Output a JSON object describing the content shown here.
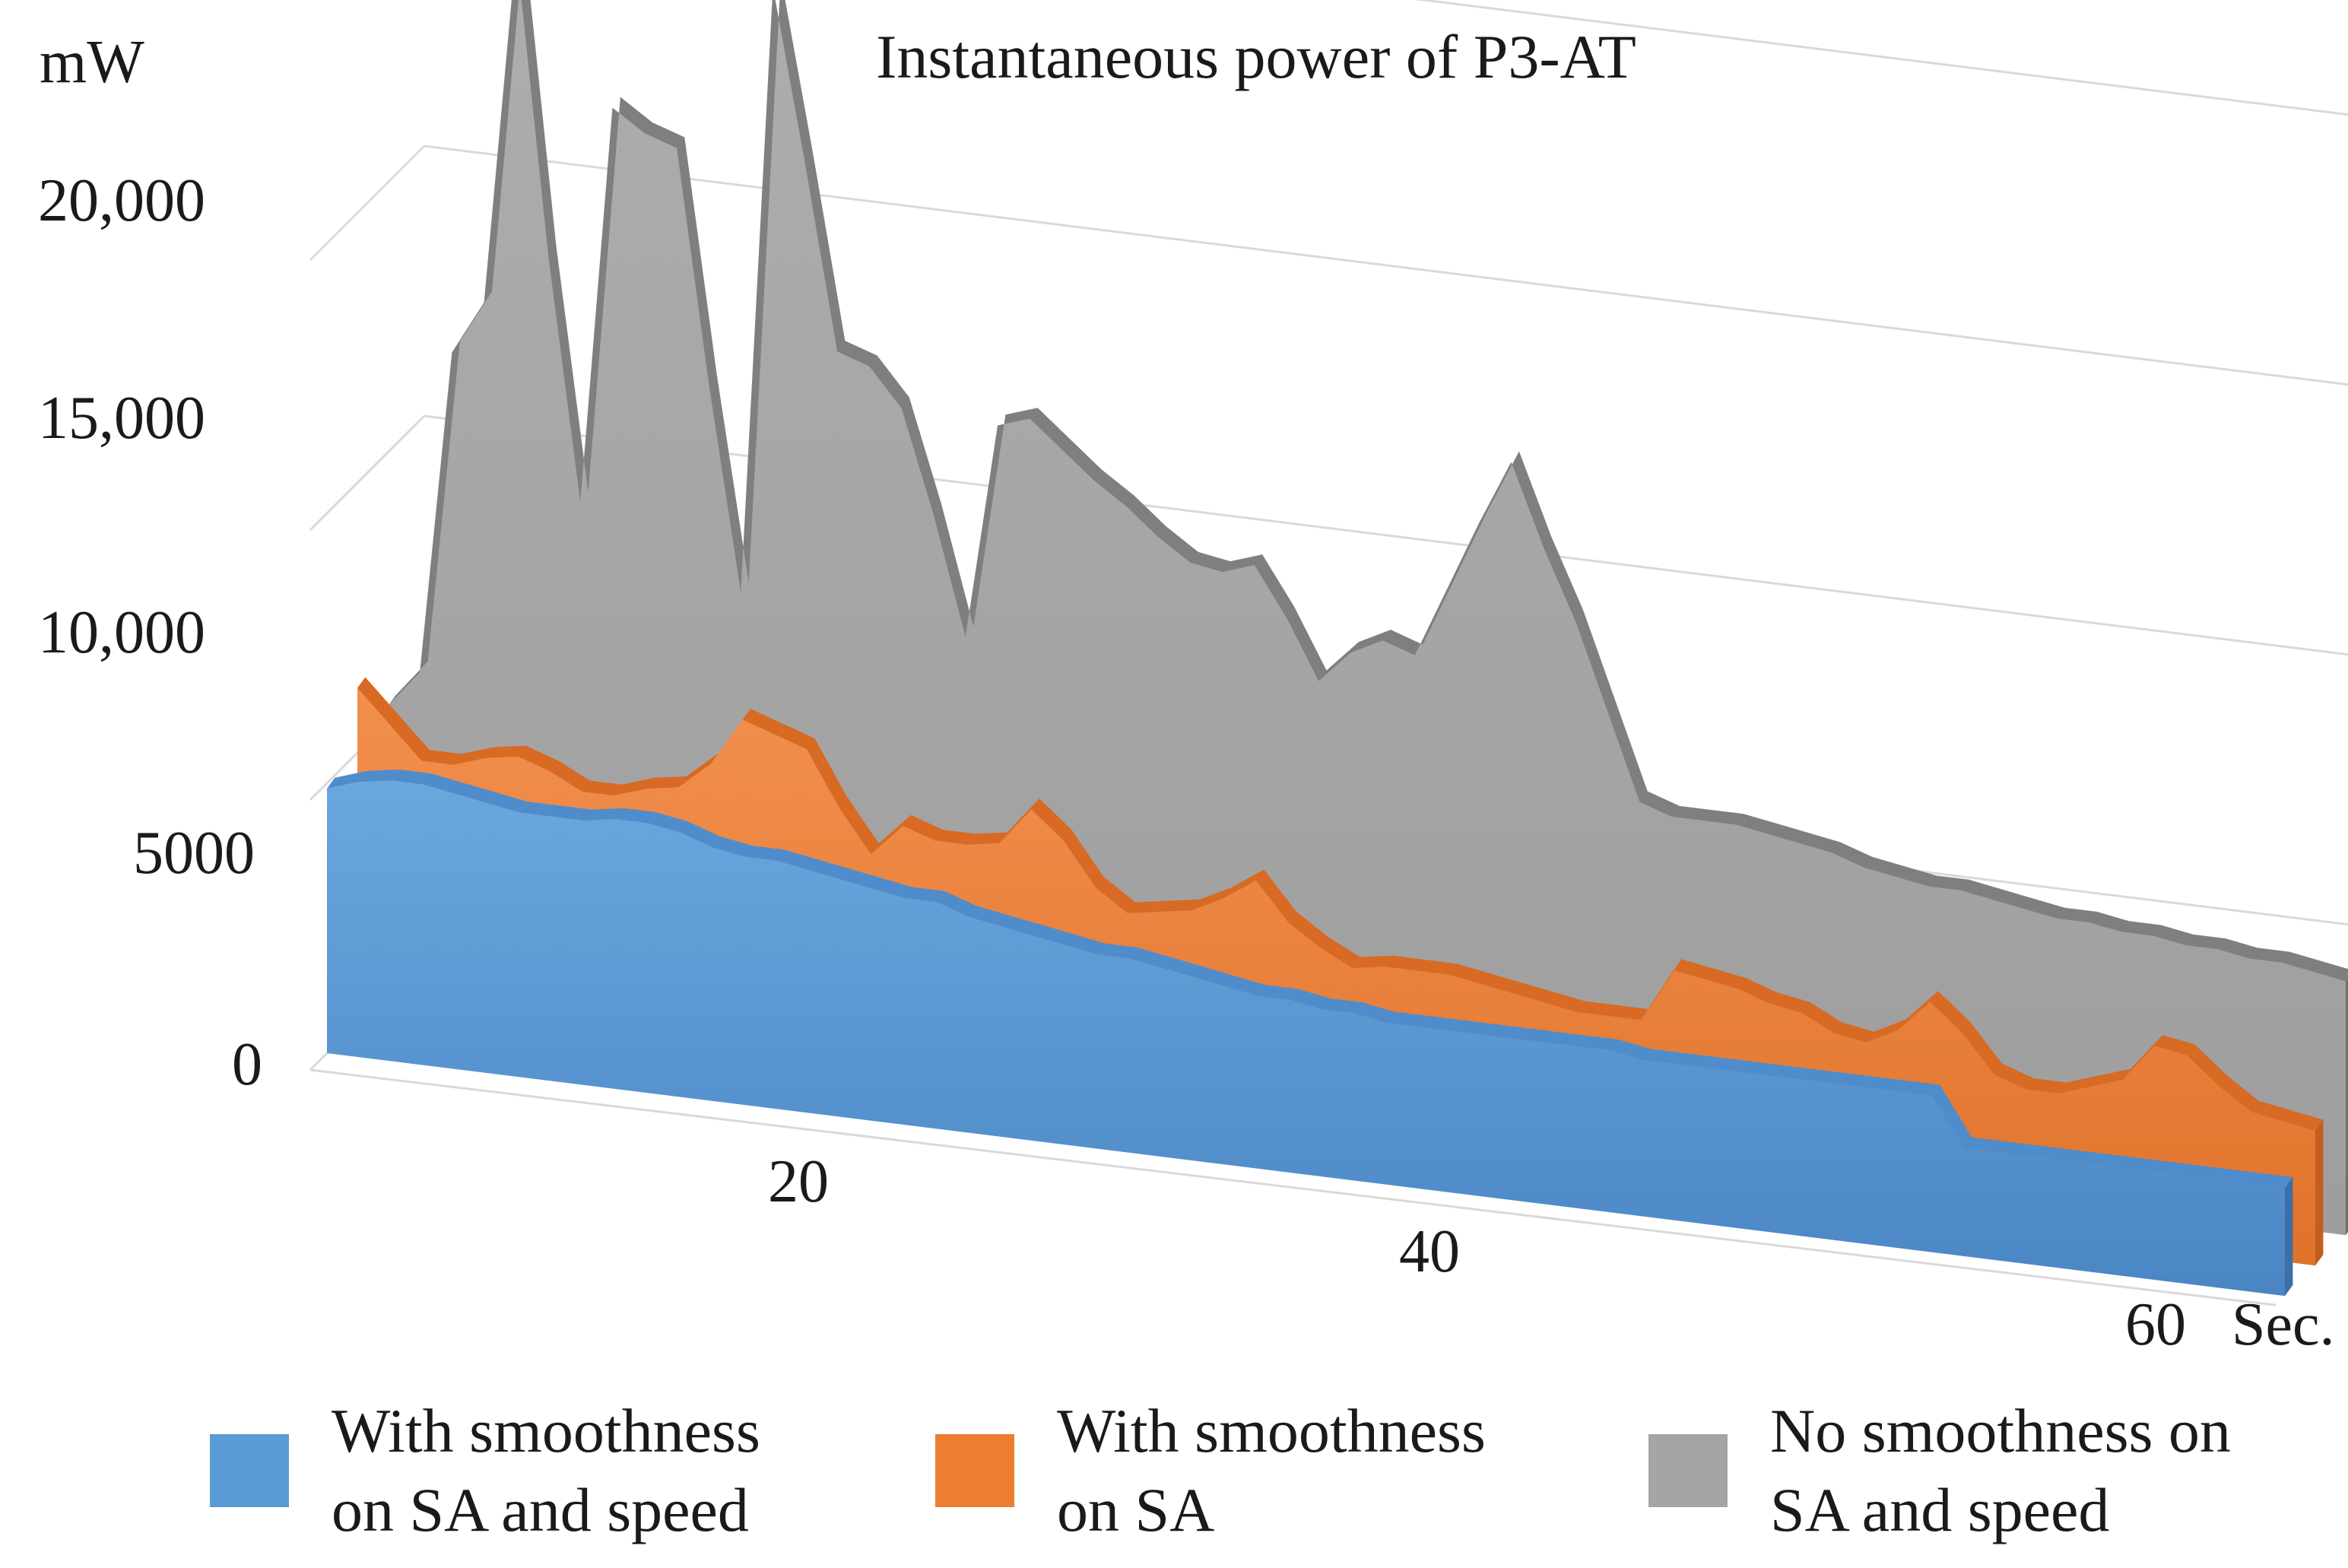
{
  "chart_data": {
    "type": "area",
    "title": "Instantaneous power of P3-AT",
    "ylabel": "mW",
    "xlabel": "Sec.",
    "ylim": [
      0,
      20000
    ],
    "y_ticks": [
      0,
      5000,
      10000,
      15000,
      20000
    ],
    "y_tick_labels": [
      "0",
      "5000",
      "10,000",
      "15,000",
      "20,000"
    ],
    "x_ticks": [
      20,
      40,
      60
    ],
    "x_tick_labels": [
      "20",
      "40",
      "60"
    ],
    "x": [
      1,
      2,
      3,
      4,
      5,
      6,
      7,
      8,
      9,
      10,
      11,
      12,
      13,
      14,
      15,
      16,
      17,
      18,
      19,
      20,
      21,
      22,
      23,
      24,
      25,
      26,
      27,
      28,
      29,
      30,
      31,
      32,
      33,
      34,
      35,
      36,
      37,
      38,
      39,
      40,
      41,
      42,
      43,
      44,
      45,
      46,
      47,
      48,
      49,
      50,
      51,
      52,
      53,
      54,
      55,
      56,
      57,
      58,
      59,
      60,
      61,
      62
    ],
    "grid": true,
    "legend_position": "bottom",
    "series": [
      {
        "name": "With smoothness on SA and speed",
        "color": "#5b9bd5",
        "values": [
          4900,
          5100,
          5200,
          5200,
          5100,
          5000,
          4900,
          4900,
          4900,
          5000,
          5000,
          4900,
          4700,
          4600,
          4600,
          4500,
          4400,
          4300,
          4200,
          4200,
          4000,
          3900,
          3800,
          3700,
          3600,
          3600,
          3500,
          3400,
          3300,
          3200,
          3200,
          3100,
          3100,
          3000,
          3000,
          3000,
          3000,
          3000,
          3000,
          3000,
          3000,
          2900,
          2900,
          2900,
          2900,
          2900,
          2900,
          2900,
          2900,
          2900,
          2900,
          2000,
          2000,
          2000,
          2000,
          2000,
          2000,
          2000,
          2000,
          2000,
          2000,
          2000
        ]
      },
      {
        "name": "With smoothness on SA",
        "color": "#ed7d31",
        "values": [
          6200,
          5600,
          5000,
          5000,
          5200,
          5300,
          5100,
          4800,
          4800,
          5000,
          5100,
          5600,
          6500,
          6300,
          6100,
          5100,
          4300,
          4900,
          4700,
          4700,
          4800,
          5500,
          5000,
          4200,
          3800,
          3900,
          4000,
          4300,
          4700,
          4000,
          3600,
          3300,
          3400,
          3400,
          3400,
          3300,
          3200,
          3100,
          3000,
          3000,
          3000,
          4000,
          3900,
          3800,
          3600,
          3500,
          3200,
          3100,
          3400,
          4000,
          3500,
          2800,
          2600,
          2600,
          2800,
          3000,
          3700,
          3600,
          3100,
          2700,
          2600,
          2500
        ]
      },
      {
        "name": "No smoothness on SA and speed",
        "color": "#a5a5a5",
        "values": [
          5300,
          6000,
          12000,
          13000,
          19600,
          14000,
          9500,
          16900,
          16500,
          16300,
          12000,
          8200,
          19500,
          16300,
          12900,
          12700,
          12000,
          10100,
          7900,
          11900,
          12100,
          11600,
          11100,
          10700,
          10200,
          9800,
          9700,
          9900,
          9000,
          7900,
          8500,
          8800,
          8600,
          9900,
          11200,
          12400,
          10900,
          9600,
          8000,
          6400,
          6200,
          6200,
          6200,
          6100,
          6000,
          5900,
          5700,
          5600,
          5500,
          5500,
          5400,
          5300,
          5200,
          5200,
          5100,
          5100,
          5000,
          5000,
          4900,
          4900,
          4800,
          4700
        ]
      }
    ]
  },
  "legend": {
    "items": [
      {
        "label": "With smoothness\non SA and speed",
        "color": "#5b9bd5"
      },
      {
        "label": "With smoothness\non SA",
        "color": "#ed7d31"
      },
      {
        "label": "No smoothness on\nSA and speed",
        "color": "#a5a5a5"
      }
    ]
  }
}
